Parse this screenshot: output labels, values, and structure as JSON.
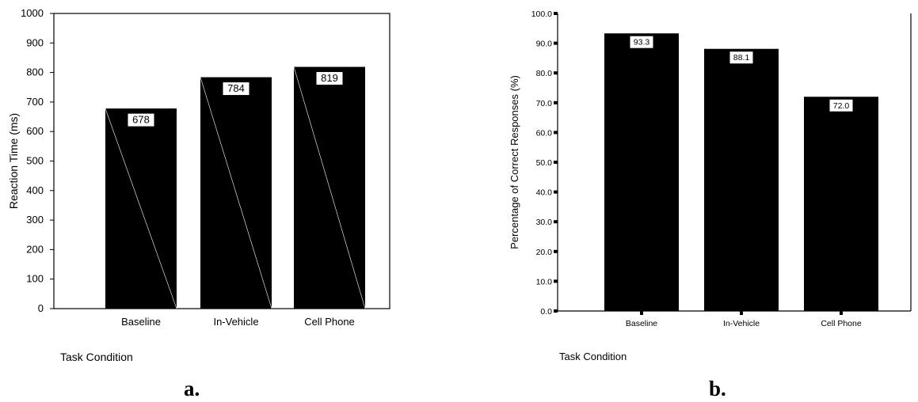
{
  "chart_data": [
    {
      "type": "bar",
      "panel_label": "a.",
      "categories": [
        "Baseline",
        "In-Vehicle",
        "Cell Phone"
      ],
      "values": [
        678,
        784,
        819
      ],
      "data_labels": [
        "678",
        "784",
        "819"
      ],
      "ylabel": "Reaction Time (ms)",
      "xlabel": "Task Condition",
      "ylim": [
        0,
        1000
      ],
      "yticks": [
        0,
        100,
        200,
        300,
        400,
        500,
        600,
        700,
        800,
        900,
        1000
      ],
      "ytick_labels": [
        "0",
        "100",
        "200",
        "300",
        "400",
        "500",
        "600",
        "700",
        "800",
        "900",
        "1000"
      ],
      "bar_color": "#000000",
      "grid": false,
      "legend": "none"
    },
    {
      "type": "bar",
      "panel_label": "b.",
      "categories": [
        "Baseline",
        "In-Vehicle",
        "Cell Phone"
      ],
      "values": [
        93.3,
        88.1,
        72.0
      ],
      "data_labels": [
        "93.3",
        "88.1",
        "72.0"
      ],
      "ylabel": "Percentage of Correct Responses (%)",
      "xlabel": "Task Condition",
      "ylim": [
        0,
        100
      ],
      "yticks": [
        0,
        10,
        20,
        30,
        40,
        50,
        60,
        70,
        80,
        90,
        100
      ],
      "ytick_labels": [
        "0.0",
        "10.0",
        "20.0",
        "30.0",
        "40.0",
        "50.0",
        "60.0",
        "70.0",
        "80.0",
        "90.0",
        "100.0"
      ],
      "bar_color": "#000000",
      "grid": false,
      "legend": "none"
    }
  ]
}
